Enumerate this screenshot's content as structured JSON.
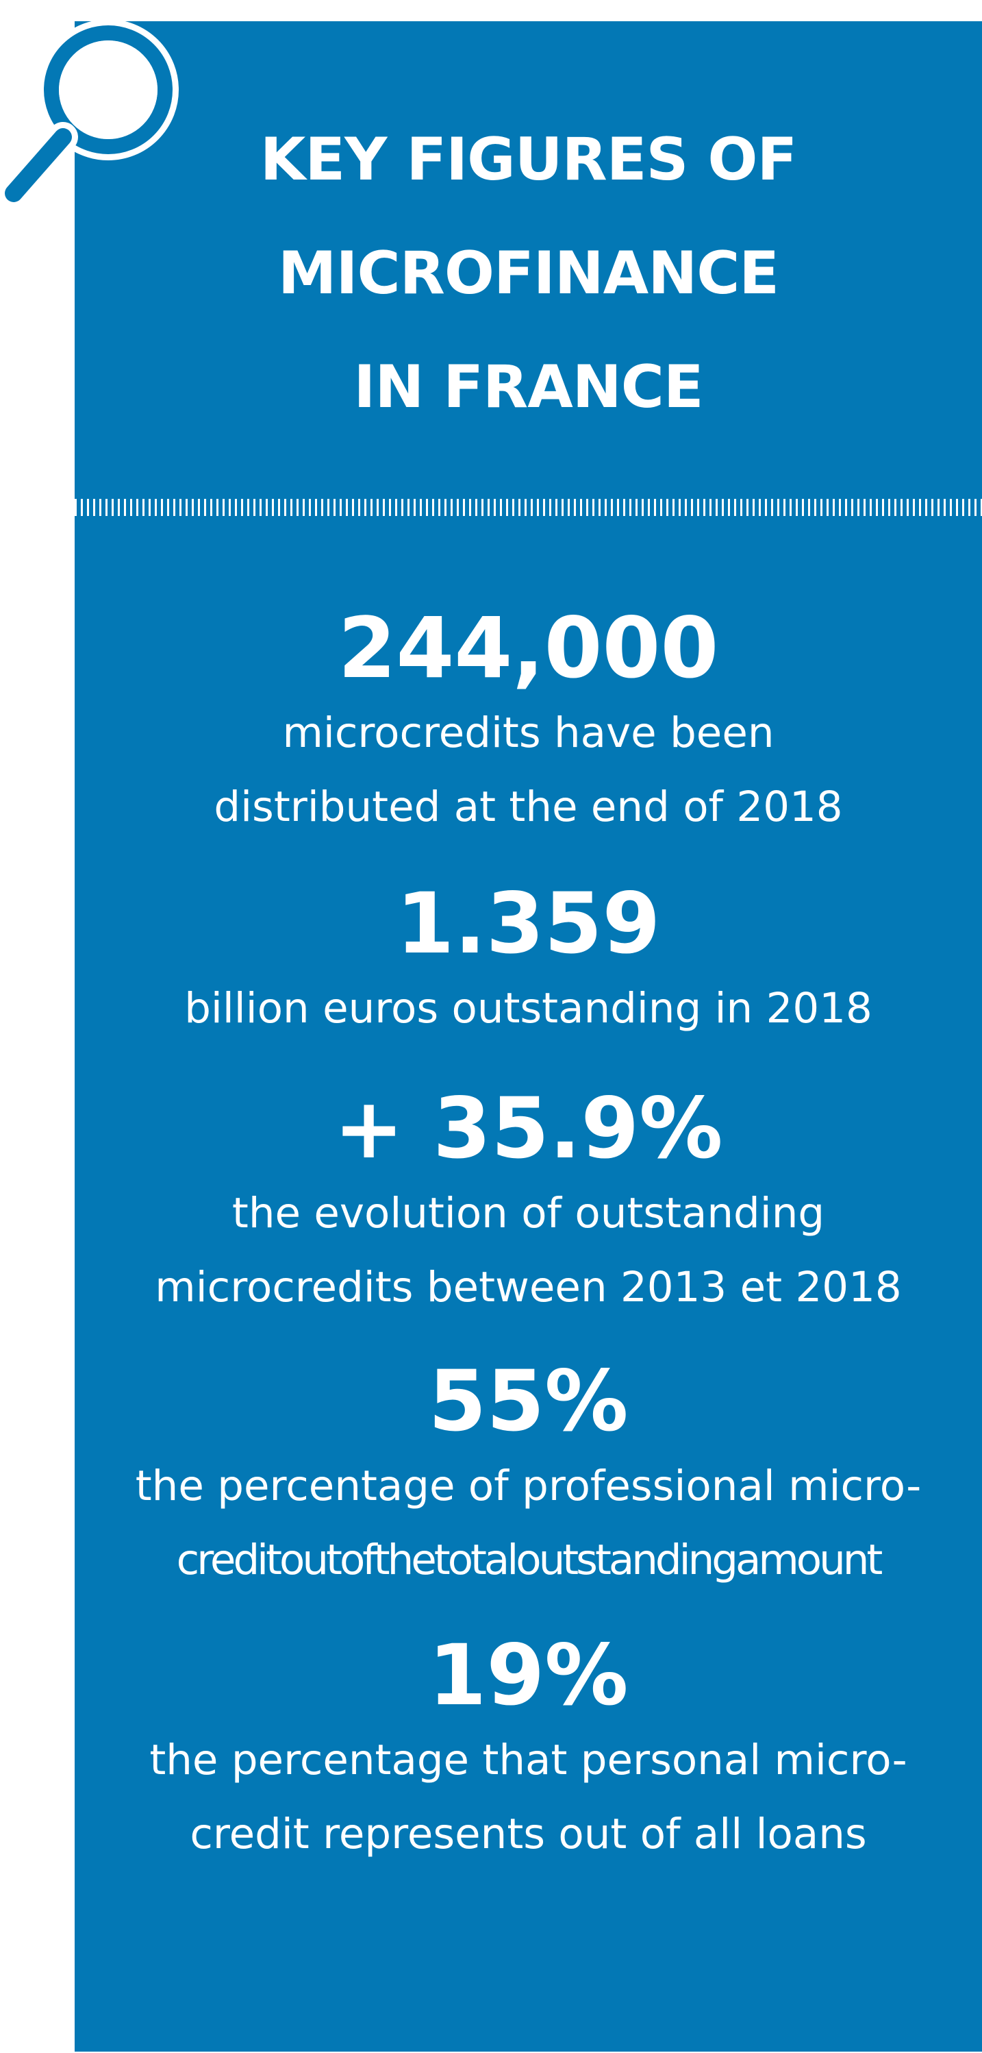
{
  "colors": {
    "panel": "#0378b5",
    "text": "#ffffff"
  },
  "icon": "magnifier-icon",
  "title": {
    "line1": "KEY FIGURES OF",
    "line2": "MICROFINANCE",
    "line3": "IN FRANCE"
  },
  "figures": [
    {
      "value": "244,000",
      "desc_line1": "microcredits have been",
      "desc_line2": "distributed at the end of 2018"
    },
    {
      "value": "1.359",
      "desc_line1": "billion euros outstanding in 2018"
    },
    {
      "value": "+ 35.9%",
      "desc_line1": "the evolution of outstanding",
      "desc_line2": "microcredits between 2013 et 2018"
    },
    {
      "value": "55%",
      "desc_line1": "the percentage of professional micro-",
      "desc_line2": "creditoutofthetotaloutstandingamount"
    },
    {
      "value": "19%",
      "desc_line1": "the percentage that personal micro-",
      "desc_line2": "credit represents out of all loans"
    }
  ]
}
